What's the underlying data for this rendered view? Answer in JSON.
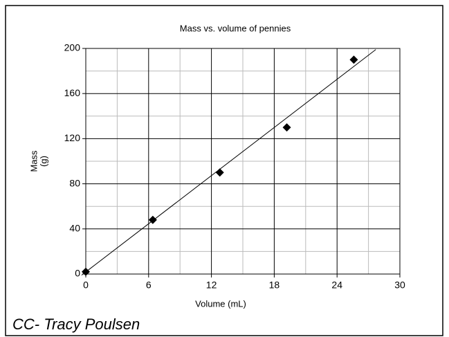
{
  "chart_data": {
    "type": "scatter",
    "title": "Mass vs. volume of pennies",
    "xlabel": "Volume (mL)",
    "ylabel": [
      "Mass",
      "(g)"
    ],
    "x": [
      0,
      6.4,
      12.8,
      19.2,
      25.6
    ],
    "values": [
      2,
      48,
      90,
      130,
      190
    ],
    "color": "#000000",
    "trendline": {
      "x": [
        -0.4,
        27.7
      ],
      "values": [
        -1,
        199
      ]
    },
    "xlim": [
      0,
      30
    ],
    "xticks": [
      0,
      6,
      12,
      18,
      24,
      30
    ],
    "xminor": [
      3,
      9,
      15,
      21,
      27
    ],
    "ylim": [
      0,
      200
    ],
    "yticks": [
      0,
      40,
      80,
      120,
      160,
      200
    ],
    "yminor": [
      20,
      60,
      100,
      140,
      180
    ],
    "grid": true,
    "credit": "CC- Tracy Poulsen"
  }
}
